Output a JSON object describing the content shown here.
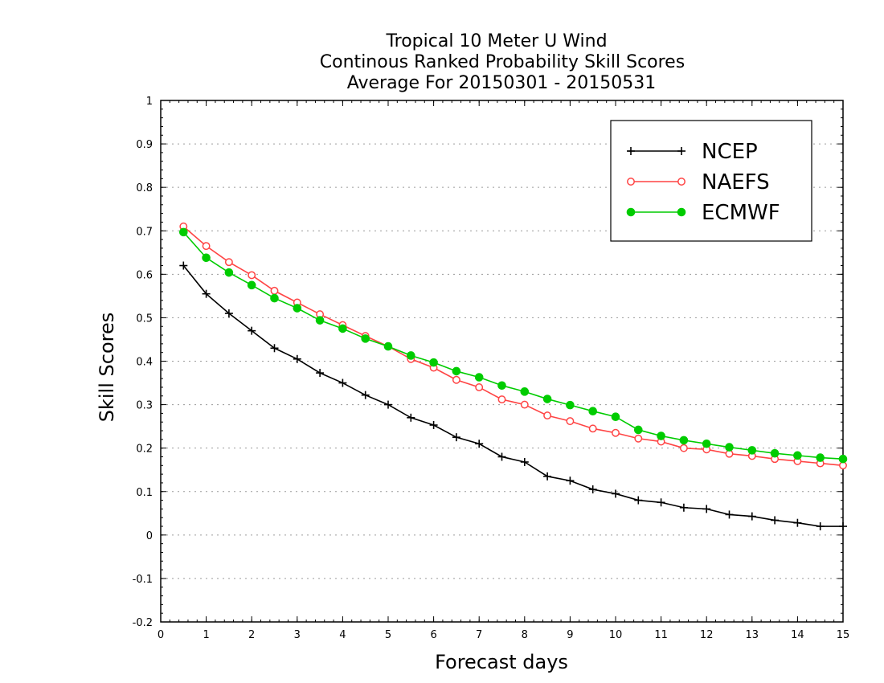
{
  "chart_data": {
    "type": "line",
    "title_lines": [
      "Tropical 10 Meter U Wind",
      "Continous Ranked Probability Skill Scores",
      "Average For 20150301 - 20150531"
    ],
    "xlabel": "Forecast days",
    "ylabel": "Skill Scores",
    "xlim": [
      0,
      15
    ],
    "ylim": [
      -0.2,
      1
    ],
    "xticks": [
      "0",
      "1",
      "2",
      "3",
      "4",
      "5",
      "6",
      "7",
      "8",
      "9",
      "10",
      "11",
      "12",
      "13",
      "14",
      "15"
    ],
    "yticks": [
      "-0.2",
      "-0.1",
      "0",
      "0.1",
      "0.2",
      "0.3",
      "0.4",
      "0.5",
      "0.6",
      "0.7",
      "0.8",
      "0.9",
      "1"
    ],
    "grid": "horizontal dotted",
    "legend_position": "top-right",
    "x": [
      0.5,
      1,
      1.5,
      2,
      2.5,
      3,
      3.5,
      4,
      4.5,
      5,
      5.5,
      6,
      6.5,
      7,
      7.5,
      8,
      8.5,
      9,
      9.5,
      10,
      10.5,
      11,
      11.5,
      12,
      12.5,
      13,
      13.5,
      14,
      14.5,
      15
    ],
    "series": [
      {
        "name": "NCEP",
        "color": "#000000",
        "marker": "plus",
        "values": [
          0.62,
          0.555,
          0.51,
          0.47,
          0.43,
          0.405,
          0.373,
          0.35,
          0.322,
          0.3,
          0.27,
          0.253,
          0.225,
          0.21,
          0.18,
          0.168,
          0.135,
          0.125,
          0.105,
          0.095,
          0.08,
          0.075,
          0.063,
          0.06,
          0.047,
          0.043,
          0.034,
          0.028,
          0.02,
          0.02
        ]
      },
      {
        "name": "NAEFS",
        "color": "#ff4444",
        "marker": "open-circle",
        "values": [
          0.71,
          0.665,
          0.628,
          0.598,
          0.562,
          0.535,
          0.508,
          0.483,
          0.458,
          0.434,
          0.405,
          0.385,
          0.357,
          0.34,
          0.312,
          0.3,
          0.275,
          0.262,
          0.245,
          0.235,
          0.222,
          0.215,
          0.2,
          0.197,
          0.187,
          0.182,
          0.175,
          0.17,
          0.165,
          0.16
        ]
      },
      {
        "name": "ECMWF",
        "color": "#00cc00",
        "marker": "filled-circle",
        "values": [
          0.697,
          0.638,
          0.604,
          0.575,
          0.545,
          0.522,
          0.494,
          0.475,
          0.452,
          0.434,
          0.413,
          0.397,
          0.377,
          0.363,
          0.344,
          0.33,
          0.313,
          0.299,
          0.285,
          0.272,
          0.242,
          0.228,
          0.218,
          0.21,
          0.202,
          0.195,
          0.188,
          0.183,
          0.178,
          0.175
        ]
      }
    ]
  }
}
